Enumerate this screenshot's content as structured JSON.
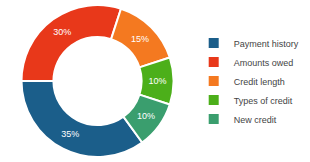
{
  "chart_data": {
    "type": "pie",
    "categories": [
      "Payment history",
      "Amounts owed",
      "Credit length",
      "Types of credit",
      "New credit"
    ],
    "values": [
      35,
      30,
      15,
      10,
      10
    ],
    "value_labels": [
      "35%",
      "30%",
      "15%",
      "10%",
      "10%"
    ],
    "colors": [
      "#1b5e8a",
      "#e8381a",
      "#f47920",
      "#4caf1a",
      "#3a9e6e"
    ],
    "data_labels": true,
    "legend": "right"
  }
}
